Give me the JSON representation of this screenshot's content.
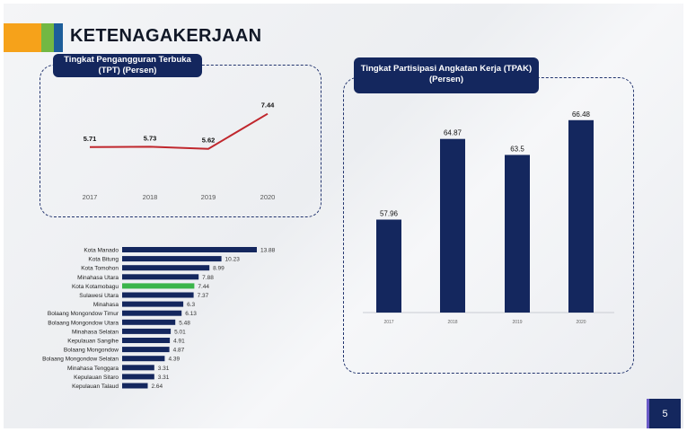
{
  "page": {
    "title": "KETENAGAKERJAAN",
    "page_number": "5",
    "colors": {
      "stripe_orange": "#f6a21a",
      "stripe_green": "#73b843",
      "stripe_blue": "#1d5e9a",
      "navy": "#14275e",
      "line_red": "#c0272d",
      "highlight_green": "#3ab54a"
    }
  },
  "chart_data": [
    {
      "type": "line",
      "title": "Tingkat Pengangguran Terbuka\n(TPT) (Persen)",
      "categories": [
        "2017",
        "2018",
        "2019",
        "2020"
      ],
      "values": [
        5.71,
        5.73,
        5.62,
        7.44
      ],
      "value_labels": [
        "5.71",
        "5.73",
        "5.62",
        "7.44"
      ],
      "grid": false
    },
    {
      "type": "bar",
      "title": "Tingkat Partisipasi Angkatan Kerja (TPAK)\n(Persen)",
      "categories": [
        "2017",
        "2018",
        "2019",
        "2020"
      ],
      "values": [
        57.96,
        64.87,
        63.5,
        66.48
      ],
      "value_labels": [
        "57.96",
        "64.87",
        "63.5",
        "66.48"
      ],
      "grid": false
    },
    {
      "type": "bar",
      "orientation": "horizontal",
      "categories": [
        "Kota Manado",
        "Kota Bitung",
        "Kota Tomohon",
        "Minahasa Utara",
        "Kota Kotamobagu",
        "Sulawesi Utara",
        "Minahasa",
        "Bolaang Mongondow Timur",
        "Bolaang Mongondow Utara",
        "Minahasa Selatan",
        "Kepulauan Sangihe",
        "Bolaang Mongondow",
        "Bolaang Mongondow Selatan",
        "Minahasa Tenggara",
        "Kepulauan Sitaro",
        "Kepulauan Talaud"
      ],
      "values": [
        13.88,
        10.23,
        8.99,
        7.88,
        7.44,
        7.37,
        6.3,
        6.13,
        5.48,
        5.01,
        4.91,
        4.87,
        4.39,
        3.31,
        3.31,
        2.64
      ],
      "value_labels": [
        "13.88",
        "10.23",
        "8.99",
        "7.88",
        "7.44",
        "7.37",
        "6.3",
        "6.13",
        "5.48",
        "5.01",
        "4.91",
        "4.87",
        "4.39",
        "3.31",
        "3.31",
        "2.64"
      ],
      "highlight": "Kota Kotamobagu",
      "grid": false
    }
  ]
}
